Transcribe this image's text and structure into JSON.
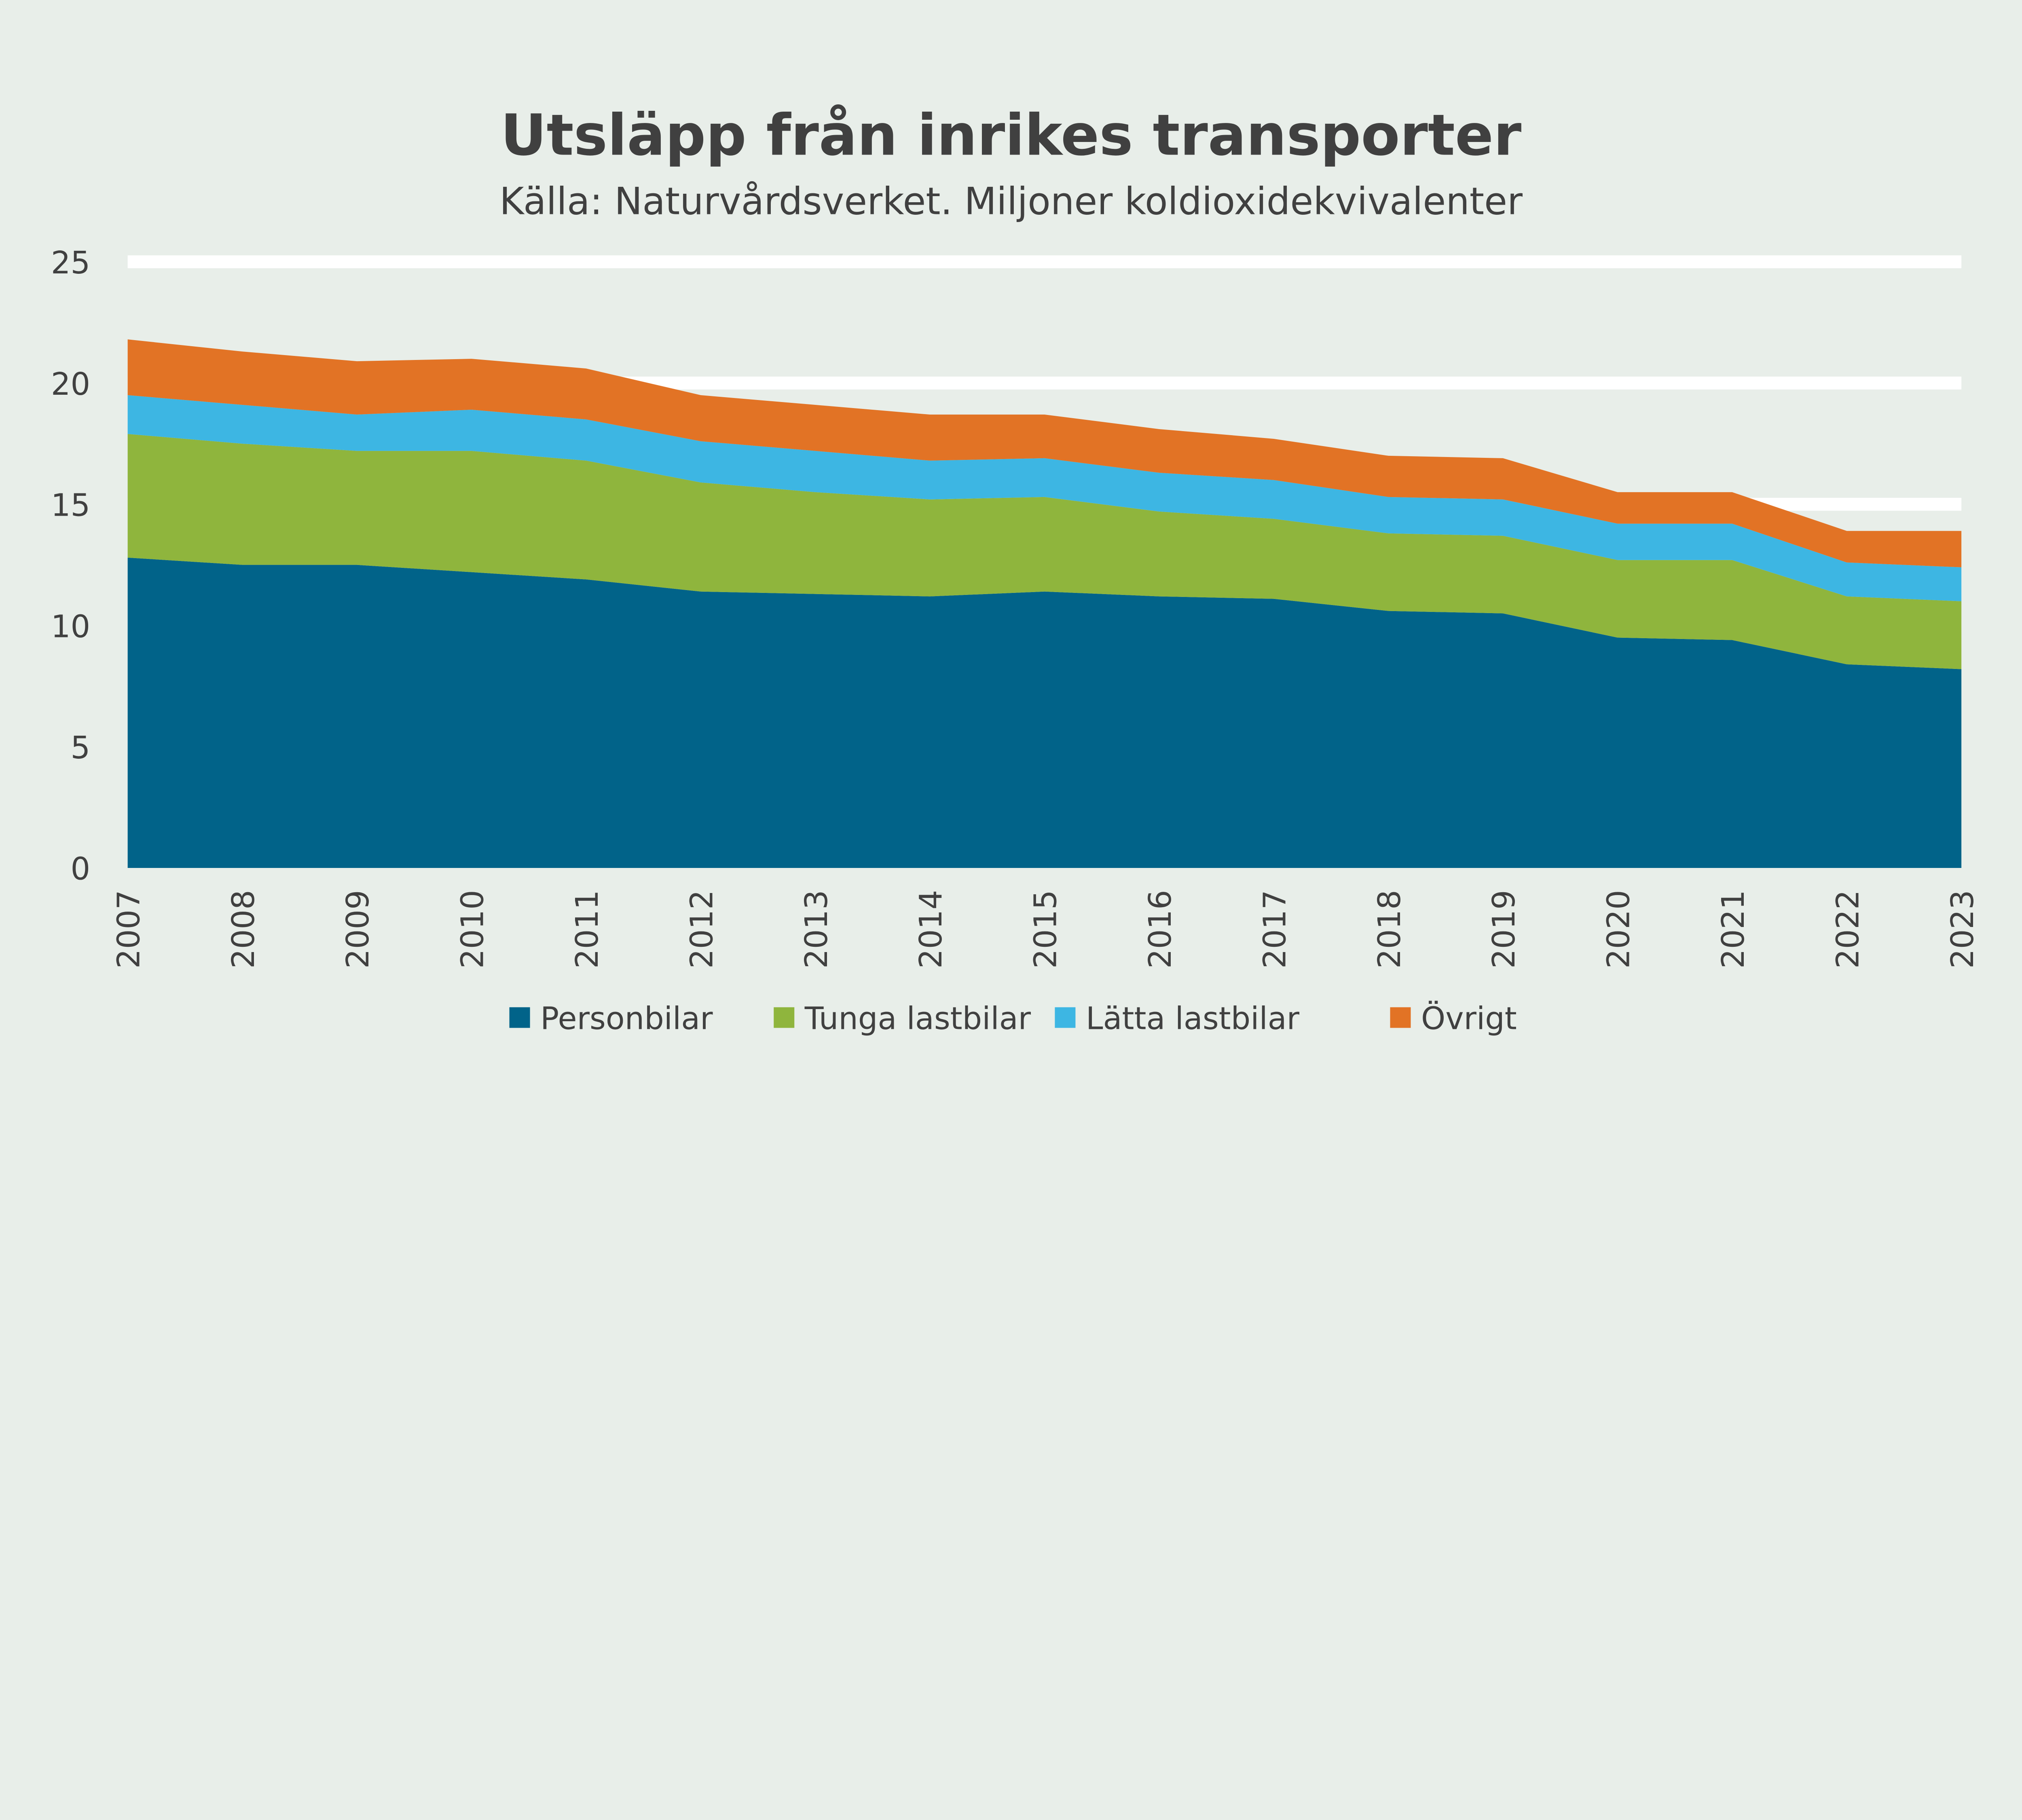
{
  "chart_data": {
    "type": "area",
    "stacked": true,
    "title": "Utsläpp från inrikes transporter",
    "subtitle": "Källa: Naturvårdsverket. Miljoner koldioxidekvivalenter",
    "xlabel": "",
    "ylabel": "",
    "ylim": [
      0,
      25
    ],
    "yticks": [
      "0",
      "5",
      "10",
      "15",
      "20",
      "25"
    ],
    "grid": true,
    "legend_position": "bottom",
    "categories": [
      "2007",
      "2008",
      "2009",
      "2010",
      "2011",
      "2012",
      "2013",
      "2014",
      "2015",
      "2016",
      "2017",
      "2018",
      "2019",
      "2020",
      "2021",
      "2022",
      "2023"
    ],
    "series": [
      {
        "name": "Personbilar",
        "color": "#016389",
        "values": [
          12.8,
          12.5,
          12.5,
          12.2,
          11.9,
          11.4,
          11.3,
          11.2,
          11.4,
          11.2,
          11.1,
          10.6,
          10.5,
          9.5,
          9.4,
          8.4,
          8.2
        ]
      },
      {
        "name": "Tunga lastbilar",
        "color": "#8fb53d",
        "values": [
          5.1,
          5.0,
          4.7,
          5.0,
          4.9,
          4.5,
          4.2,
          4.0,
          3.9,
          3.5,
          3.3,
          3.2,
          3.2,
          3.2,
          3.3,
          2.8,
          2.8
        ]
      },
      {
        "name": "Lätta lastbilar",
        "color": "#3db6e3",
        "values": [
          1.6,
          1.6,
          1.5,
          1.7,
          1.7,
          1.7,
          1.7,
          1.6,
          1.6,
          1.6,
          1.6,
          1.5,
          1.5,
          1.5,
          1.5,
          1.4,
          1.4
        ]
      },
      {
        "name": "Övrigt",
        "color": "#e27325",
        "values": [
          2.3,
          2.2,
          2.2,
          2.1,
          2.1,
          1.9,
          1.9,
          1.9,
          1.8,
          1.8,
          1.7,
          1.7,
          1.7,
          1.3,
          1.3,
          1.3,
          1.5
        ]
      }
    ]
  }
}
